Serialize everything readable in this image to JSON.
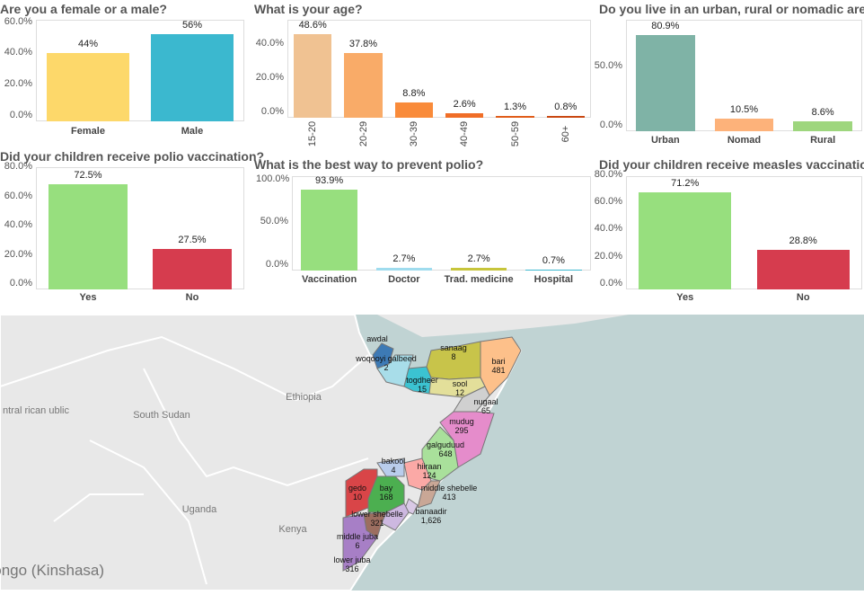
{
  "chart_data": [
    {
      "type": "bar",
      "title": "Are you a female or a male?",
      "categories": [
        "Female",
        "Male"
      ],
      "values": [
        44,
        56
      ],
      "labels": [
        "44%",
        "56%"
      ],
      "ticks": [
        "60.0%",
        "40.0%",
        "20.0%",
        "0.0%"
      ],
      "tick_values": [
        60,
        40,
        20,
        0
      ],
      "ylim": [
        0,
        65
      ],
      "colors": [
        "#fdd86a",
        "#3bb8cf"
      ]
    },
    {
      "type": "bar",
      "title": "What is your age?",
      "categories": [
        "15-20",
        "20-29",
        "30-39",
        "40-49",
        "50-59",
        "60+"
      ],
      "values": [
        48.6,
        37.8,
        8.8,
        2.6,
        1.3,
        0.8
      ],
      "labels": [
        "48.6%",
        "37.8%",
        "8.8%",
        "2.6%",
        "1.3%",
        "0.8%"
      ],
      "ticks": [
        "40.0%",
        "20.0%",
        "0.0%"
      ],
      "tick_values": [
        40,
        20,
        0
      ],
      "ylim": [
        0,
        57
      ],
      "colors": [
        "#f0c292",
        "#f9ab68",
        "#f98b3a",
        "#f06e27",
        "#e05d1a",
        "#c94812"
      ]
    },
    {
      "type": "bar",
      "title": "Do you live in an urban, rural or nomadic area?",
      "categories": [
        "Urban",
        "Nomad",
        "Rural"
      ],
      "values": [
        80.9,
        10.5,
        8.6
      ],
      "labels": [
        "80.9%",
        "10.5%",
        "8.6%"
      ],
      "ticks": [
        "50.0%",
        "0.0%"
      ],
      "tick_values": [
        50,
        0
      ],
      "ylim": [
        0,
        94
      ],
      "colors": [
        "#7fb3a6",
        "#fdb27a",
        "#9ed67e"
      ]
    },
    {
      "type": "bar",
      "title": "Did your children receive polio vaccination?",
      "categories": [
        "Yes",
        "No"
      ],
      "values": [
        72.5,
        27.5
      ],
      "labels": [
        "72.5%",
        "27.5%"
      ],
      "ticks": [
        "80.0%",
        "60.0%",
        "40.0%",
        "20.0%",
        "0.0%"
      ],
      "tick_values": [
        80,
        60,
        40,
        20,
        0
      ],
      "ylim": [
        0,
        84
      ],
      "colors": [
        "#97df7e",
        "#d63c4e"
      ]
    },
    {
      "type": "bar",
      "title": "What is the best way to prevent polio?",
      "categories": [
        "Vaccination",
        "Doctor",
        "Trad. medicine",
        "Hospital"
      ],
      "values": [
        93.9,
        2.7,
        2.7,
        0.7
      ],
      "labels": [
        "93.9%",
        "2.7%",
        "2.7%",
        "0.7%"
      ],
      "ticks": [
        "100.0%",
        "50.0%",
        "0.0%"
      ],
      "tick_values": [
        100,
        50,
        0
      ],
      "ylim": [
        0,
        110
      ],
      "colors": [
        "#97df7e",
        "#9fdcee",
        "#c7c53b",
        "#3bb8cf"
      ]
    },
    {
      "type": "bar",
      "title": "Did your children receive measles vaccination?",
      "categories": [
        "Yes",
        "No"
      ],
      "values": [
        71.2,
        28.8
      ],
      "labels": [
        "71.2%",
        "28.8%"
      ],
      "ticks": [
        "80.0%",
        "60.0%",
        "40.0%",
        "20.0%",
        "0.0%"
      ],
      "tick_values": [
        80,
        60,
        40,
        20,
        0
      ],
      "ylim": [
        0,
        83
      ],
      "colors": [
        "#97df7e",
        "#d63c4e"
      ]
    }
  ],
  "map": {
    "countries": [
      "Ethiopia",
      "South Sudan",
      "Uganda",
      "Kenya",
      "Congo (Kinshasa)",
      "ntral rican ublic"
    ],
    "regions": [
      {
        "name": "awdal",
        "value": "",
        "color": "#3d7ab5"
      },
      {
        "name": "woqooyi galbeed",
        "value": "2",
        "color": "#a8dde9"
      },
      {
        "name": "togdheer",
        "value": "15",
        "color": "#3bc3d1"
      },
      {
        "name": "sanaag",
        "value": "8",
        "color": "#c8c44a"
      },
      {
        "name": "bari",
        "value": "481",
        "color": "#fdc08a"
      },
      {
        "name": "sool",
        "value": "12",
        "color": "#e3df9a"
      },
      {
        "name": "nugaal",
        "value": "65",
        "color": "#d0d0d0"
      },
      {
        "name": "mudug",
        "value": "295",
        "color": "#e58ccb"
      },
      {
        "name": "galguduud",
        "value": "648",
        "color": "#a9e09b"
      },
      {
        "name": "bakool",
        "value": "4",
        "color": "#b9cdec"
      },
      {
        "name": "hiiraan",
        "value": "124",
        "color": "#fba9a6"
      },
      {
        "name": "middle shebelle",
        "value": "413",
        "color": "#c9a796"
      },
      {
        "name": "gedo",
        "value": "10",
        "color": "#d94548"
      },
      {
        "name": "bay",
        "value": "168",
        "color": "#4caf50"
      },
      {
        "name": "banaadir",
        "value": "1,626",
        "color": "#d9c9e6"
      },
      {
        "name": "lower shebelle",
        "value": "321",
        "color": "#cdb8e0"
      },
      {
        "name": "middle juba",
        "value": "6",
        "color": "#9c6e60"
      },
      {
        "name": "lower juba",
        "value": "316",
        "color": "#a77fc6"
      }
    ]
  }
}
